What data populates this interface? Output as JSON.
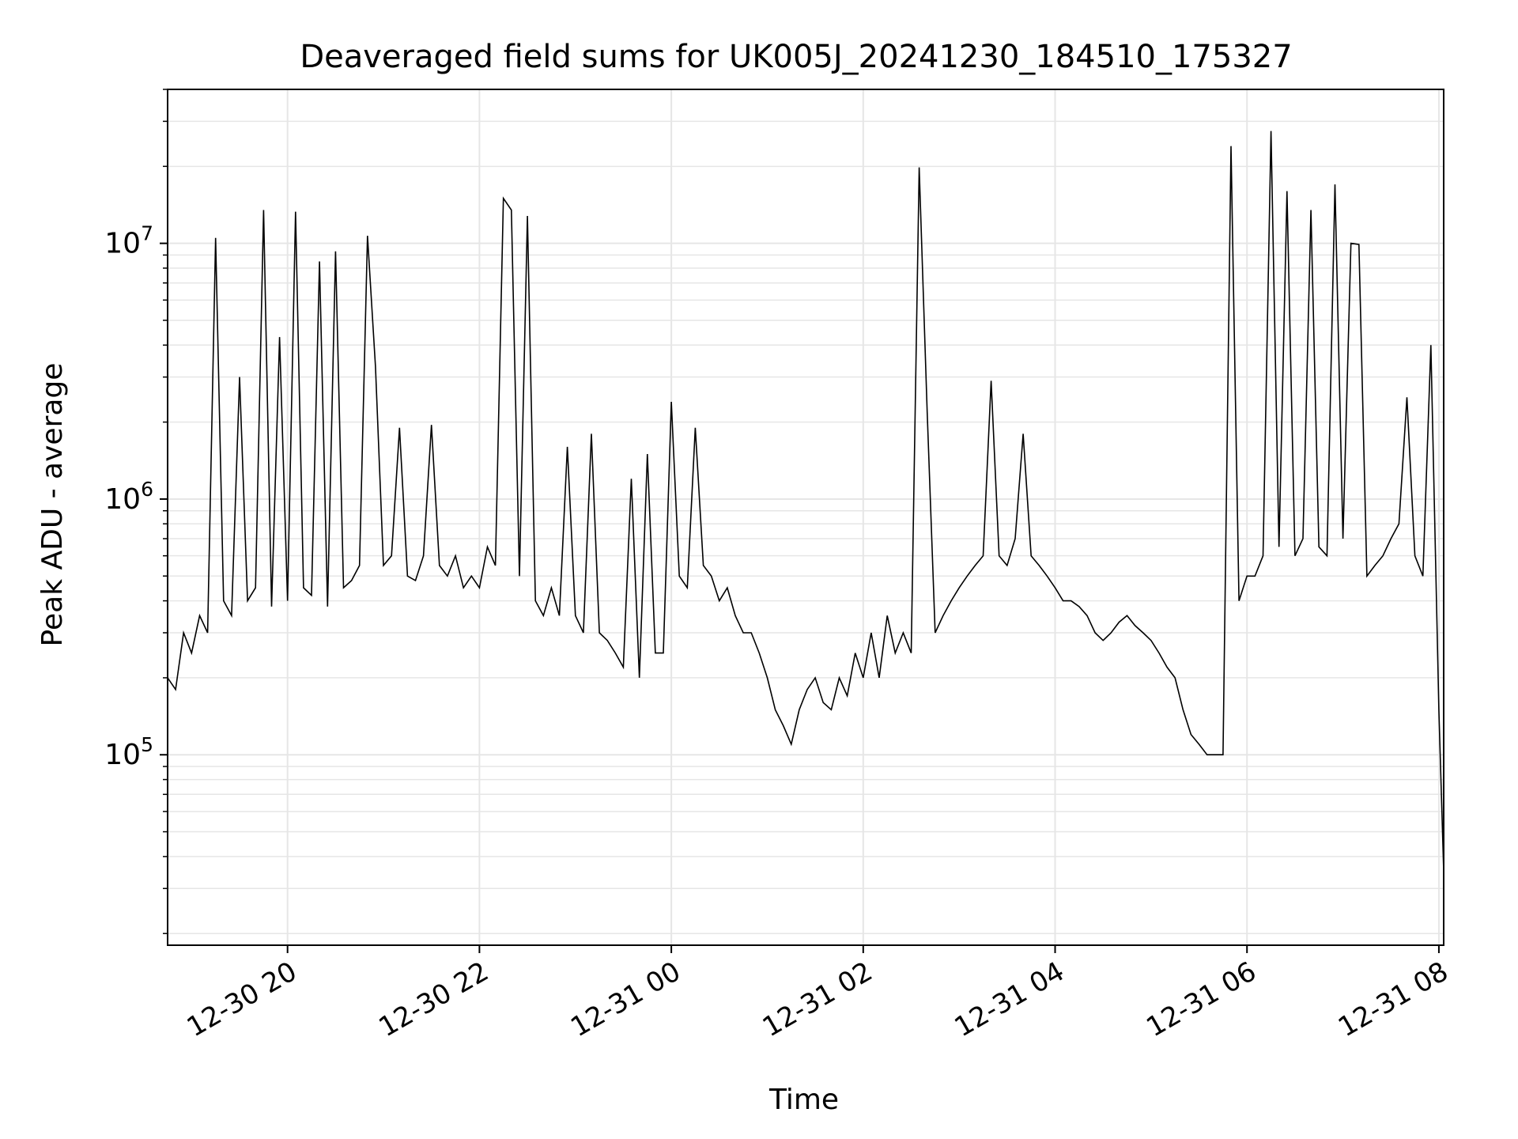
{
  "chart_data": {
    "type": "line",
    "title": "Deaveraged field sums for UK005J_20241230_184510_175327",
    "xlabel": "Time",
    "ylabel": "Peak ADU - average",
    "y_scale": "log",
    "grid": true,
    "line_color": "#000000",
    "grid_color": "#e6e6e6",
    "xlim": [
      "2024-12-30 18:45",
      "2024-12-31 08:03"
    ],
    "ylim": [
      18000,
      40000000
    ],
    "x_ticks": [
      {
        "t": "2024-12-30 20:00",
        "label": "12-30 20"
      },
      {
        "t": "2024-12-30 22:00",
        "label": "12-30 22"
      },
      {
        "t": "2024-12-31 00:00",
        "label": "12-31 00"
      },
      {
        "t": "2024-12-31 02:00",
        "label": "12-31 02"
      },
      {
        "t": "2024-12-31 04:00",
        "label": "12-31 04"
      },
      {
        "t": "2024-12-31 06:00",
        "label": "12-31 06"
      },
      {
        "t": "2024-12-31 08:00",
        "label": "12-31 08"
      }
    ],
    "y_ticks": [
      {
        "value": 100000,
        "base": "10",
        "exp": "5"
      },
      {
        "value": 1000000,
        "base": "10",
        "exp": "6"
      },
      {
        "value": 10000000,
        "base": "10",
        "exp": "7"
      }
    ],
    "series": [
      {
        "x": [
          "2024-12-30 18:45",
          "2024-12-30 18:50",
          "2024-12-30 18:55",
          "2024-12-30 19:00",
          "2024-12-30 19:05",
          "2024-12-30 19:10",
          "2024-12-30 19:15",
          "2024-12-30 19:20",
          "2024-12-30 19:25",
          "2024-12-30 19:30",
          "2024-12-30 19:35",
          "2024-12-30 19:40",
          "2024-12-30 19:45",
          "2024-12-30 19:50",
          "2024-12-30 19:55",
          "2024-12-30 20:00",
          "2024-12-30 20:05",
          "2024-12-30 20:10",
          "2024-12-30 20:15",
          "2024-12-30 20:20",
          "2024-12-30 20:25",
          "2024-12-30 20:30",
          "2024-12-30 20:35",
          "2024-12-30 20:40",
          "2024-12-30 20:45",
          "2024-12-30 20:50",
          "2024-12-30 20:55",
          "2024-12-30 21:00",
          "2024-12-30 21:05",
          "2024-12-30 21:10",
          "2024-12-30 21:15",
          "2024-12-30 21:20",
          "2024-12-30 21:25",
          "2024-12-30 21:30",
          "2024-12-30 21:35",
          "2024-12-30 21:40",
          "2024-12-30 21:45",
          "2024-12-30 21:50",
          "2024-12-30 21:55",
          "2024-12-30 22:00",
          "2024-12-30 22:05",
          "2024-12-30 22:10",
          "2024-12-30 22:15",
          "2024-12-30 22:20",
          "2024-12-30 22:25",
          "2024-12-30 22:30",
          "2024-12-30 22:35",
          "2024-12-30 22:40",
          "2024-12-30 22:45",
          "2024-12-30 22:50",
          "2024-12-30 22:55",
          "2024-12-30 23:00",
          "2024-12-30 23:05",
          "2024-12-30 23:10",
          "2024-12-30 23:15",
          "2024-12-30 23:20",
          "2024-12-30 23:25",
          "2024-12-30 23:30",
          "2024-12-30 23:35",
          "2024-12-30 23:40",
          "2024-12-30 23:45",
          "2024-12-30 23:50",
          "2024-12-30 23:55",
          "2024-12-31 00:00",
          "2024-12-31 00:05",
          "2024-12-31 00:10",
          "2024-12-31 00:15",
          "2024-12-31 00:20",
          "2024-12-31 00:25",
          "2024-12-31 00:30",
          "2024-12-31 00:35",
          "2024-12-31 00:40",
          "2024-12-31 00:45",
          "2024-12-31 00:50",
          "2024-12-31 00:55",
          "2024-12-31 01:00",
          "2024-12-31 01:05",
          "2024-12-31 01:10",
          "2024-12-31 01:15",
          "2024-12-31 01:20",
          "2024-12-31 01:25",
          "2024-12-31 01:30",
          "2024-12-31 01:35",
          "2024-12-31 01:40",
          "2024-12-31 01:45",
          "2024-12-31 01:50",
          "2024-12-31 01:55",
          "2024-12-31 02:00",
          "2024-12-31 02:05",
          "2024-12-31 02:10",
          "2024-12-31 02:15",
          "2024-12-31 02:20",
          "2024-12-31 02:25",
          "2024-12-31 02:30",
          "2024-12-31 02:35",
          "2024-12-31 02:40",
          "2024-12-31 02:45",
          "2024-12-31 02:50",
          "2024-12-31 02:55",
          "2024-12-31 03:00",
          "2024-12-31 03:05",
          "2024-12-31 03:10",
          "2024-12-31 03:15",
          "2024-12-31 03:20",
          "2024-12-31 03:25",
          "2024-12-31 03:30",
          "2024-12-31 03:35",
          "2024-12-31 03:40",
          "2024-12-31 03:45",
          "2024-12-31 03:50",
          "2024-12-31 03:55",
          "2024-12-31 04:00",
          "2024-12-31 04:05",
          "2024-12-31 04:10",
          "2024-12-31 04:15",
          "2024-12-31 04:20",
          "2024-12-31 04:25",
          "2024-12-31 04:30",
          "2024-12-31 04:35",
          "2024-12-31 04:40",
          "2024-12-31 04:45",
          "2024-12-31 04:50",
          "2024-12-31 04:55",
          "2024-12-31 05:00",
          "2024-12-31 05:05",
          "2024-12-31 05:10",
          "2024-12-31 05:15",
          "2024-12-31 05:20",
          "2024-12-31 05:25",
          "2024-12-31 05:30",
          "2024-12-31 05:35",
          "2024-12-31 05:40",
          "2024-12-31 05:45",
          "2024-12-31 05:50",
          "2024-12-31 05:55",
          "2024-12-31 06:00",
          "2024-12-31 06:05",
          "2024-12-31 06:10",
          "2024-12-31 06:15",
          "2024-12-31 06:20",
          "2024-12-31 06:25",
          "2024-12-31 06:30",
          "2024-12-31 06:35",
          "2024-12-31 06:40",
          "2024-12-31 06:45",
          "2024-12-31 06:50",
          "2024-12-31 06:55",
          "2024-12-31 07:00",
          "2024-12-31 07:05",
          "2024-12-31 07:10",
          "2024-12-31 07:15",
          "2024-12-31 07:20",
          "2024-12-31 07:25",
          "2024-12-31 07:30",
          "2024-12-31 07:35",
          "2024-12-31 07:40",
          "2024-12-31 07:45",
          "2024-12-31 07:50",
          "2024-12-31 07:55",
          "2024-12-31 08:00",
          "2024-12-31 08:03"
        ],
        "y": [
          200000,
          180000,
          300000,
          250000,
          350000,
          300000,
          10500000,
          400000,
          350000,
          3000000,
          400000,
          450000,
          13500000,
          380000,
          4300000,
          400000,
          13300000,
          450000,
          420000,
          8500000,
          380000,
          9300000,
          450000,
          480000,
          550000,
          10700000,
          3300000,
          550000,
          600000,
          1900000,
          500000,
          480000,
          600000,
          1950000,
          550000,
          500000,
          600000,
          450000,
          500000,
          450000,
          650000,
          550000,
          15000000,
          13500000,
          500000,
          12800000,
          400000,
          350000,
          450000,
          350000,
          1600000,
          350000,
          300000,
          1800000,
          300000,
          280000,
          250000,
          220000,
          1200000,
          200000,
          1500000,
          250000,
          250000,
          2400000,
          500000,
          450000,
          1900000,
          550000,
          500000,
          400000,
          450000,
          350000,
          300000,
          300000,
          250000,
          200000,
          150000,
          130000,
          110000,
          150000,
          180000,
          200000,
          160000,
          150000,
          200000,
          170000,
          250000,
          200000,
          300000,
          200000,
          350000,
          250000,
          300000,
          250000,
          19800000,
          2200000,
          300000,
          350000,
          400000,
          450000,
          500000,
          550000,
          600000,
          2900000,
          600000,
          550000,
          700000,
          1800000,
          600000,
          550000,
          500000,
          450000,
          400000,
          400000,
          380000,
          350000,
          300000,
          280000,
          300000,
          330000,
          350000,
          320000,
          300000,
          280000,
          250000,
          220000,
          200000,
          150000,
          120000,
          110000,
          100000,
          100000,
          100000,
          24000000,
          400000,
          500000,
          500000,
          600000,
          27500000,
          650000,
          16000000,
          600000,
          700000,
          13500000,
          650000,
          600000,
          17000000,
          700000,
          10000000,
          9900000,
          500000,
          550000,
          600000,
          700000,
          800000,
          2500000,
          600000,
          500000,
          4000000,
          150000,
          35000
        ]
      }
    ]
  }
}
